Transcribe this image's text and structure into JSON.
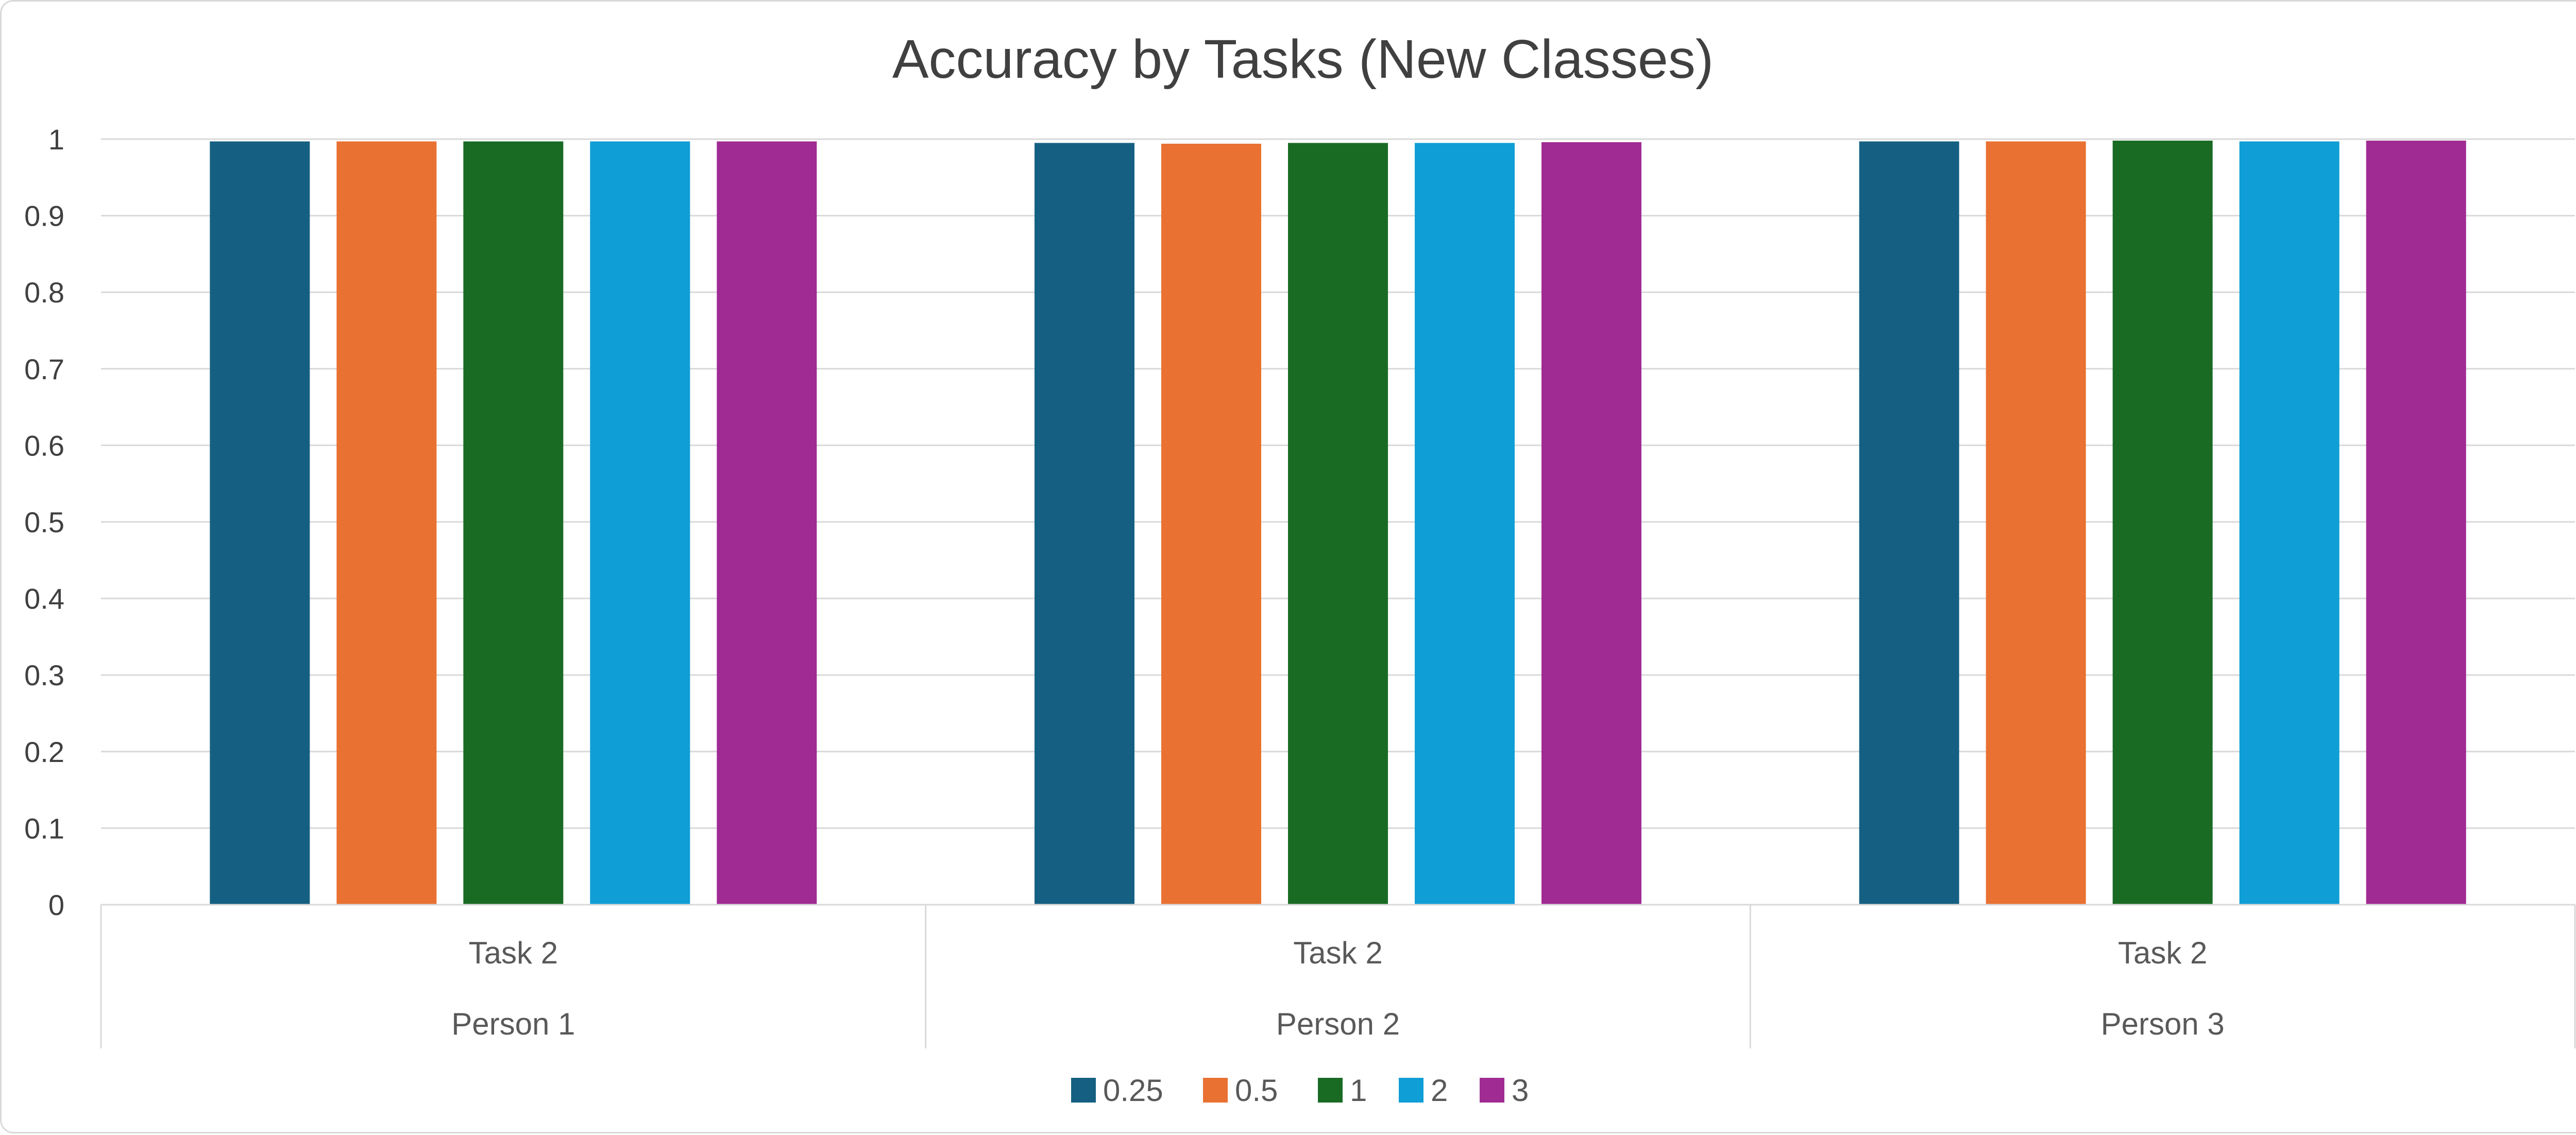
{
  "chart_data": {
    "type": "bar",
    "title": "Accuracy by Tasks (New Classes)",
    "xlabel": "",
    "ylabel": "",
    "ylim": [
      0,
      1
    ],
    "yticks": [
      "0",
      "0.1",
      "0.2",
      "0.3",
      "0.4",
      "0.5",
      "0.6",
      "0.7",
      "0.8",
      "0.9",
      "1"
    ],
    "grid": true,
    "legend_position": "bottom",
    "categories": [
      {
        "task": "Task 2",
        "group": "Person 1"
      },
      {
        "task": "Task 2",
        "group": "Person 2"
      },
      {
        "task": "Task 2",
        "group": "Person 3"
      }
    ],
    "series": [
      {
        "name": "0.25",
        "color": "#156082",
        "values": [
          0.997,
          0.995,
          0.997
        ]
      },
      {
        "name": "0.5",
        "color": "#E97132",
        "values": [
          0.997,
          0.994,
          0.997
        ]
      },
      {
        "name": "1",
        "color": "#196B24",
        "values": [
          0.997,
          0.995,
          0.998
        ]
      },
      {
        "name": "2",
        "color": "#0F9ED5",
        "values": [
          0.997,
          0.995,
          0.997
        ]
      },
      {
        "name": "3",
        "color": "#A02B93",
        "values": [
          0.997,
          0.996,
          0.998
        ]
      }
    ]
  }
}
